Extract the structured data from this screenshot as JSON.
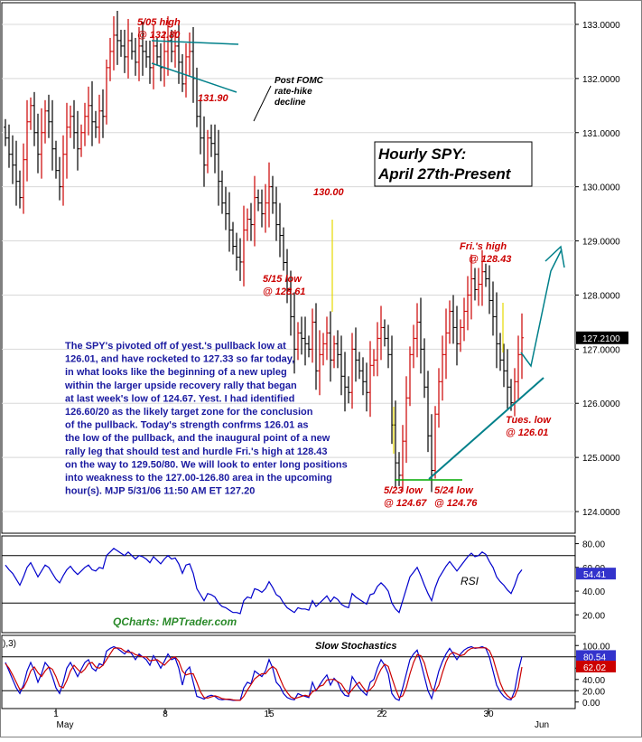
{
  "title_box": {
    "line1": "Hourly SPY:",
    "line2": "April 27th-Present"
  },
  "annotations": {
    "high_0505": {
      "l1": "5/05 high",
      "l2": "@ 132.80"
    },
    "low_131": "131.90",
    "fomc": {
      "l1": "Post FOMC",
      "l2": "rate-hike",
      "l3": "decline"
    },
    "p130": "130.00",
    "low_0515": {
      "l1": "5/15 low",
      "l2": "@ 128.61"
    },
    "fri_high": {
      "l1": "Fri.'s high",
      "l2": "@ 128.43"
    },
    "tue_low": {
      "l1": "Tues. low",
      "l2": "@ 126.01"
    },
    "low_0523": {
      "l1": "5/23 low",
      "l2": "@ 124.67"
    },
    "low_0524": {
      "l1": "5/24 low",
      "l2": "@ 124.76"
    }
  },
  "commentary": [
    "The SPY's pivoted off of yest.'s pullback low at",
    "126.01, and have rocketed to 127.33 so far today,",
    "in what looks like the beginning of a new upleg",
    "within the larger upside recovery rally that began",
    "at last week's low of 124.67. Yest. I had identified",
    "126.60/20 as the likely target zone for the conclusion",
    "of the pullback. Today's strength confrms 126.01 as",
    "the low of the pullback, and the inaugural point of a new",
    "rally leg that should test and hurdle Fri.'s high at 128.43",
    "on the way to 129.50/80. We will look to enter long positions",
    "into weakness to the 127.00-126.80 area in the upcoming",
    "hour(s). MJP  5/31/06 11:50 AM ET 127.20"
  ],
  "price_axis_ticks": [
    "133.0000",
    "132.0000",
    "131.0000",
    "130.0000",
    "129.0000",
    "128.0000",
    "127.0000",
    "126.0000",
    "125.0000",
    "124.0000"
  ],
  "last_price": "127.2100",
  "rsi": {
    "label": "RSI",
    "ticks": [
      "80.00",
      "60.00",
      "40.00",
      "20.00"
    ],
    "value": "54.41"
  },
  "stoch": {
    "label": "Slow Stochastics",
    "params": "),3)",
    "ticks": [
      "100.00",
      "80.00",
      "60.00",
      "40.00",
      "20.00",
      "0.00"
    ],
    "k": "80.54",
    "d": "62.02"
  },
  "watermark": "QCharts: MPTrader.com",
  "x_axis": {
    "days": [
      "1",
      "8",
      "15",
      "22",
      "30"
    ],
    "months": [
      "May",
      "Jun"
    ]
  },
  "colors": {
    "up_bar": "#cc0000",
    "down_bar": "#000000",
    "trend": "#00808a",
    "rsi": "#0000cc",
    "stoch_k": "#0000cc",
    "stoch_d": "#cc0000"
  },
  "chart_data": {
    "type": "ohlc",
    "interval": "hourly",
    "symbol": "SPY",
    "range": "April 27th - May 31st 2006",
    "ylim": [
      123.6,
      133.4
    ],
    "key_points": [
      {
        "label": "5/05 high",
        "value": 132.8
      },
      {
        "label": "5/15 low",
        "value": 128.61
      },
      {
        "label": "5/23 low",
        "value": 124.67
      },
      {
        "label": "5/24 low",
        "value": 124.76
      },
      {
        "label": "Fri.'s high",
        "value": 128.43
      },
      {
        "label": "Tues. low",
        "value": 126.01
      }
    ],
    "closes": [
      130.9,
      130.6,
      130.4,
      130.1,
      129.8,
      130.5,
      131.2,
      131.5,
      131.0,
      130.6,
      131.0,
      131.4,
      131.2,
      130.7,
      130.3,
      130.0,
      130.6,
      131.1,
      131.3,
      131.0,
      130.7,
      131.0,
      131.3,
      131.5,
      131.2,
      131.1,
      131.4,
      131.3,
      132.2,
      132.5,
      132.8,
      132.7,
      132.6,
      132.4,
      132.7,
      132.5,
      132.3,
      132.6,
      132.5,
      132.4,
      132.2,
      132.6,
      132.4,
      132.2,
      132.5,
      132.7,
      132.5,
      132.6,
      132.3,
      131.9,
      132.4,
      132.5,
      132.0,
      131.3,
      130.9,
      130.4,
      130.9,
      130.8,
      130.6,
      130.1,
      129.7,
      129.5,
      129.2,
      128.9,
      128.7,
      128.61,
      129.2,
      129.4,
      129.3,
      129.8,
      129.7,
      129.5,
      129.7,
      130.0,
      129.7,
      129.3,
      129.1,
      128.6,
      128.1,
      127.6,
      127.0,
      127.3,
      127.2,
      127.1,
      127.0,
      127.5,
      126.6,
      126.9,
      127.1,
      127.3,
      126.8,
      127.1,
      126.9,
      126.5,
      126.3,
      126.2,
      127.0,
      126.8,
      126.6,
      126.4,
      126.2,
      126.7,
      126.8,
      127.2,
      127.4,
      127.2,
      126.9,
      125.6,
      124.9,
      124.67,
      125.3,
      126.1,
      126.9,
      127.2,
      127.5,
      127.0,
      126.3,
      125.4,
      124.76,
      125.8,
      126.4,
      126.9,
      127.3,
      127.7,
      127.4,
      127.1,
      127.4,
      127.7,
      128.0,
      128.3,
      128.1,
      128.2,
      128.43,
      128.3,
      127.9,
      127.6,
      127.1,
      126.8,
      126.6,
      126.3,
      126.01,
      126.4,
      126.9,
      127.21
    ],
    "rsi": [
      62,
      58,
      55,
      50,
      45,
      52,
      60,
      64,
      58,
      52,
      57,
      62,
      60,
      55,
      50,
      47,
      53,
      58,
      61,
      57,
      54,
      57,
      60,
      62,
      58,
      57,
      60,
      59,
      70,
      73,
      76,
      74,
      72,
      70,
      73,
      70,
      67,
      70,
      69,
      67,
      64,
      69,
      66,
      63,
      67,
      70,
      67,
      68,
      63,
      55,
      62,
      63,
      55,
      42,
      37,
      32,
      38,
      37,
      35,
      30,
      27,
      26,
      24,
      22,
      22,
      21,
      32,
      35,
      34,
      42,
      41,
      39,
      42,
      48,
      43,
      37,
      35,
      30,
      26,
      24,
      22,
      26,
      25,
      25,
      24,
      32,
      27,
      30,
      33,
      36,
      31,
      35,
      33,
      29,
      27,
      26,
      38,
      35,
      33,
      31,
      29,
      37,
      38,
      44,
      47,
      44,
      40,
      30,
      25,
      22,
      32,
      42,
      52,
      56,
      60,
      53,
      45,
      38,
      32,
      43,
      51,
      56,
      61,
      65,
      61,
      57,
      61,
      65,
      69,
      72,
      69,
      70,
      73,
      71,
      65,
      60,
      52,
      48,
      45,
      41,
      38,
      45,
      54,
      58
    ],
    "stoch_k": [
      70,
      55,
      40,
      25,
      15,
      30,
      55,
      70,
      55,
      35,
      50,
      70,
      62,
      45,
      25,
      15,
      35,
      60,
      70,
      58,
      45,
      58,
      70,
      75,
      60,
      55,
      68,
      65,
      90,
      95,
      98,
      95,
      90,
      85,
      92,
      85,
      75,
      85,
      80,
      75,
      65,
      82,
      72,
      60,
      72,
      85,
      75,
      78,
      60,
      30,
      55,
      62,
      35,
      10,
      8,
      5,
      10,
      12,
      10,
      5,
      4,
      5,
      4,
      3,
      3,
      3,
      25,
      35,
      32,
      55,
      50,
      45,
      55,
      75,
      60,
      35,
      28,
      15,
      8,
      5,
      4,
      15,
      12,
      10,
      8,
      35,
      20,
      30,
      40,
      48,
      30,
      42,
      35,
      20,
      12,
      10,
      45,
      35,
      25,
      18,
      12,
      35,
      40,
      60,
      75,
      65,
      50,
      15,
      6,
      3,
      25,
      50,
      75,
      85,
      92,
      70,
      45,
      20,
      6,
      30,
      55,
      72,
      85,
      95,
      85,
      75,
      85,
      92,
      96,
      98,
      95,
      96,
      98,
      95,
      80,
      55,
      30,
      18,
      10,
      5,
      4,
      20,
      55,
      80.54
    ],
    "stoch_d": [
      68,
      60,
      48,
      35,
      22,
      25,
      38,
      55,
      62,
      52,
      45,
      55,
      62,
      58,
      45,
      28,
      25,
      38,
      55,
      65,
      58,
      52,
      58,
      68,
      70,
      62,
      60,
      65,
      75,
      85,
      95,
      96,
      95,
      90,
      88,
      88,
      84,
      82,
      80,
      80,
      73,
      74,
      75,
      70,
      65,
      72,
      78,
      80,
      72,
      55,
      48,
      50,
      50,
      35,
      18,
      8,
      7,
      9,
      11,
      9,
      6,
      5,
      5,
      4,
      3,
      3,
      10,
      21,
      31,
      41,
      46,
      50,
      50,
      58,
      63,
      58,
      42,
      27,
      17,
      9,
      6,
      8,
      10,
      12,
      10,
      18,
      21,
      28,
      30,
      39,
      40,
      40,
      36,
      32,
      22,
      14,
      22,
      30,
      35,
      26,
      18,
      22,
      29,
      45,
      58,
      67,
      63,
      43,
      24,
      8,
      11,
      26,
      50,
      70,
      84,
      82,
      69,
      45,
      24,
      19,
      30,
      52,
      71,
      84,
      88,
      85,
      82,
      84,
      91,
      95,
      96,
      96,
      96,
      96,
      91,
      77,
      55,
      34,
      19,
      11,
      6,
      10,
      26,
      62.02
    ]
  }
}
